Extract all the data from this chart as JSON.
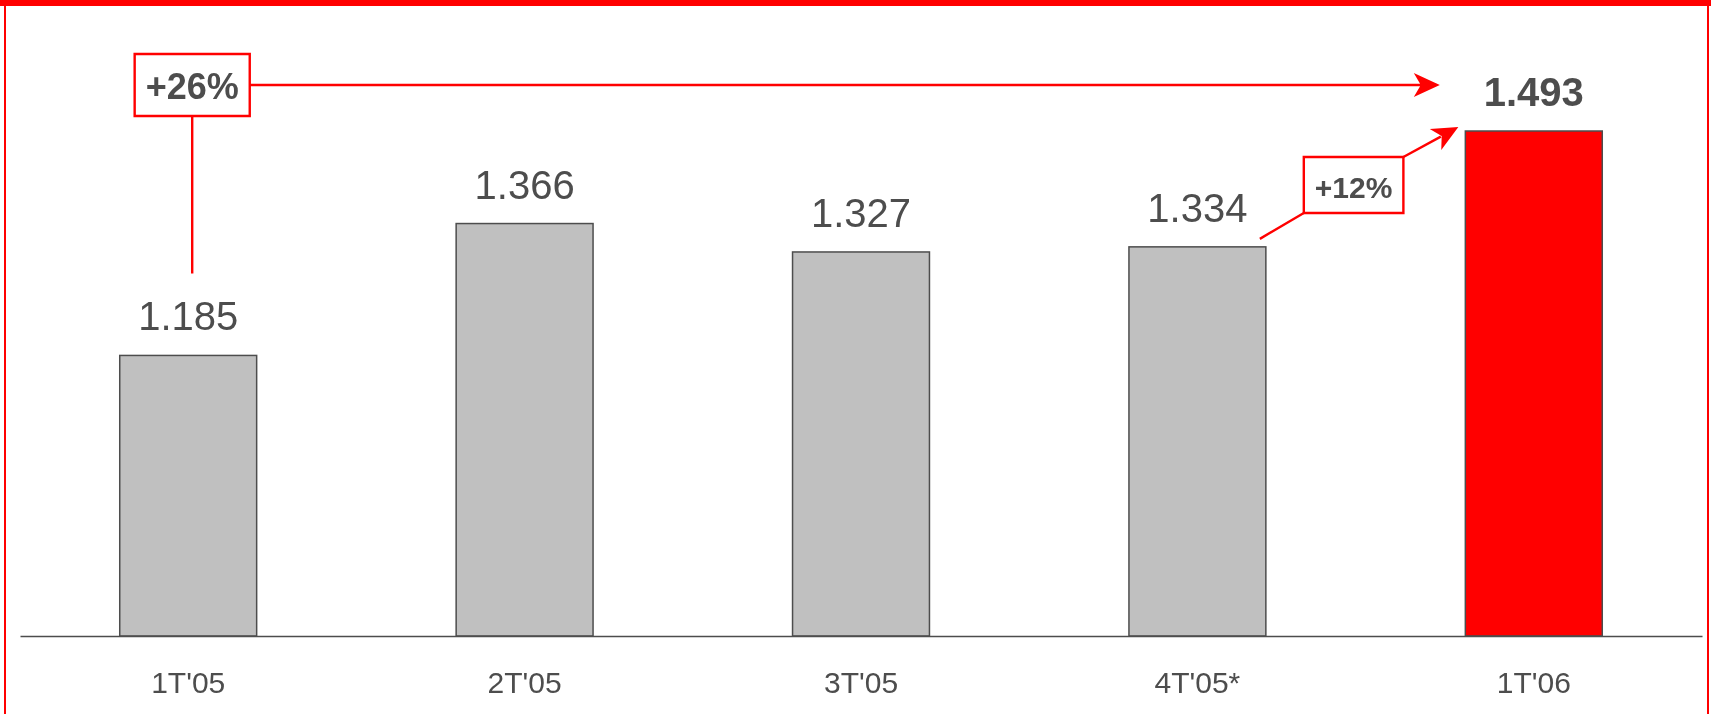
{
  "chart_data": {
    "type": "bar",
    "categories": [
      "1T'05",
      "2T'05",
      "3T'05",
      "4T'05*",
      "1T'06"
    ],
    "values": [
      1185,
      1366,
      1327,
      1334,
      1493
    ],
    "value_labels": [
      "1.185",
      "1.366",
      "1.327",
      "1.334",
      "1.493"
    ],
    "colors": [
      "#c0c0c0",
      "#c0c0c0",
      "#c0c0c0",
      "#c0c0c0",
      "#ff0000"
    ],
    "ylim": [
      800,
      1493
    ],
    "tick_labels": "x",
    "annotations": [
      "+26%",
      "+12%"
    ]
  }
}
